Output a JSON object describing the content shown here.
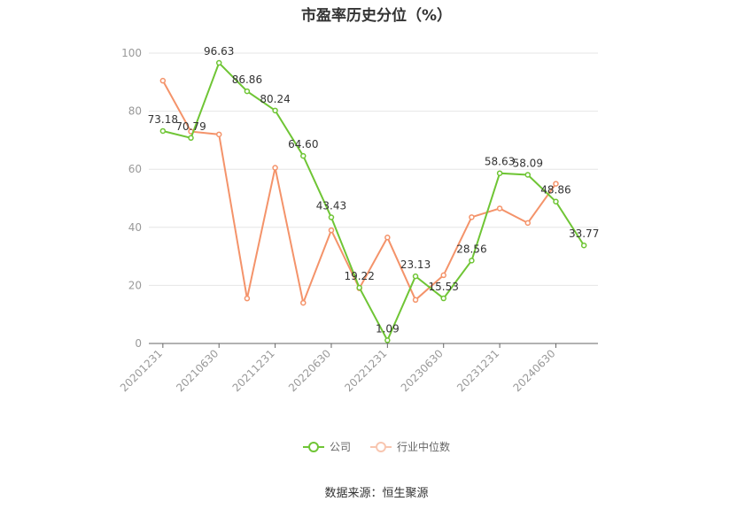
{
  "title": "市盈率历史分位（%）",
  "source": "数据来源：恒生聚源",
  "colors": {
    "company": "#6fc535",
    "industry": "#f4936a",
    "grid": "#e6e6e6",
    "axis": "#999999",
    "label": "#333333"
  },
  "chart_data": {
    "type": "line",
    "title": "市盈率历史分位（%）",
    "xlabel": "",
    "ylabel": "",
    "ylim": [
      0,
      100
    ],
    "yticks": [
      0,
      20,
      40,
      60,
      80,
      100
    ],
    "grid": true,
    "legend": "bottom-center",
    "x": [
      "20201231",
      "20210331",
      "20210630",
      "20210930",
      "20211231",
      "20220331",
      "20220630",
      "20220930",
      "20221231",
      "20230331",
      "20230630",
      "20230930",
      "20231231",
      "20240331",
      "20240630",
      "20240930"
    ],
    "xtick_labels": [
      "20201231",
      "",
      "20210630",
      "",
      "20211231",
      "",
      "20220630",
      "",
      "20221231",
      "",
      "20230630",
      "",
      "20231231",
      "",
      "20240630",
      ""
    ],
    "series": [
      {
        "name": "公司",
        "color": "#6fc535",
        "values": [
          73.18,
          70.79,
          96.63,
          86.86,
          80.24,
          64.6,
          43.43,
          19.22,
          1.09,
          23.13,
          15.53,
          28.56,
          58.63,
          58.09,
          48.86,
          33.77
        ],
        "labels": [
          "73.18",
          "70.79",
          "96.63",
          "86.86",
          "80.24",
          "64.60",
          "43.43",
          "19.22",
          "1.09",
          "23.13",
          "15.53",
          "28.56",
          "58.63",
          "58.09",
          "48.86",
          "33.77"
        ]
      },
      {
        "name": "行业中位数",
        "color": "#f4936a",
        "values": [
          90.5,
          73.0,
          72.0,
          15.5,
          60.5,
          14.0,
          39.0,
          19.0,
          36.5,
          15.0,
          23.5,
          43.5,
          46.5,
          41.5,
          55.0,
          null
        ],
        "labels": []
      }
    ]
  }
}
